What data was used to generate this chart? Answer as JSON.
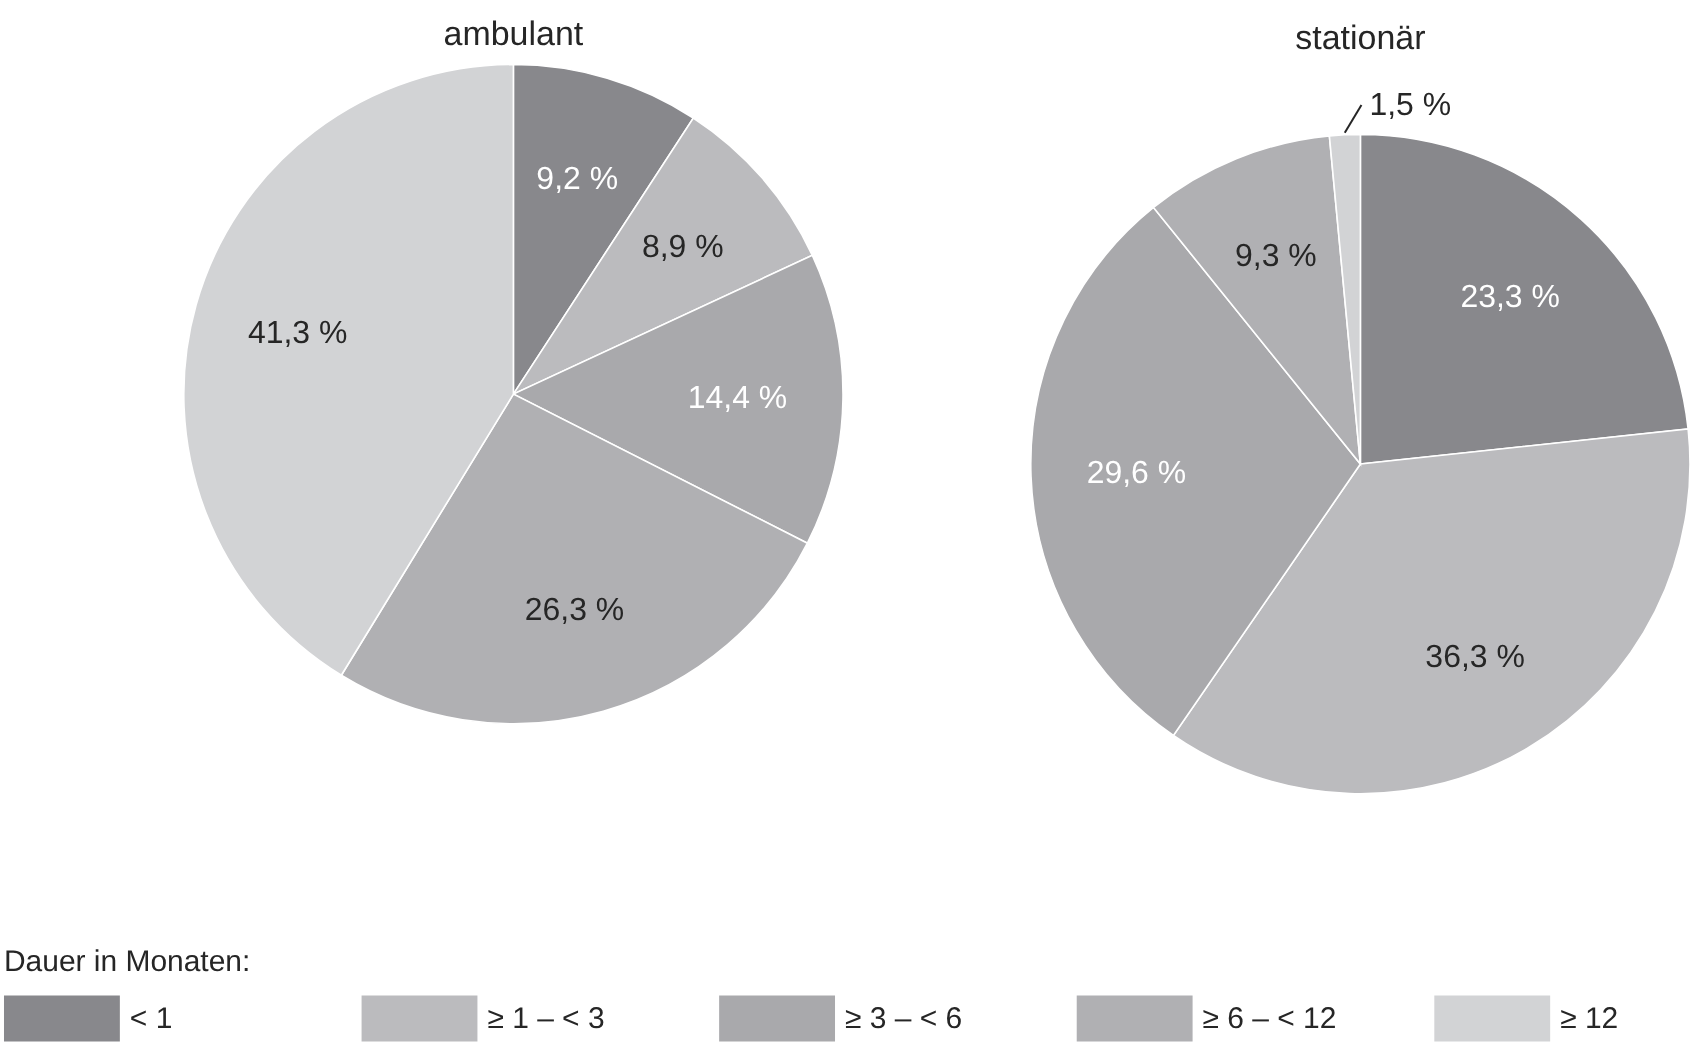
{
  "chart_data": {
    "type": "pie",
    "categories": [
      "< 1",
      "≥ 1 – < 3",
      "≥ 3 – < 6",
      "≥ 6 – < 12",
      "≥ 12"
    ],
    "colors": [
      "#88888c",
      "#bbbbbe",
      "#a9a9ac",
      "#b0b0b3",
      "#d2d3d5"
    ],
    "legend": "bottom",
    "legend_title": "Dauer in Monaten:",
    "series": [
      {
        "name": "ambulant",
        "values": [
          9.2,
          8.9,
          14.4,
          26.3,
          41.3
        ],
        "value_labels": [
          "9,2 %",
          "8,9 %",
          "14,4 %",
          "26,3 %",
          "41,3 %"
        ]
      },
      {
        "name": "stationär",
        "values": [
          23.3,
          36.3,
          29.6,
          9.3,
          1.5
        ],
        "value_labels": [
          "23,3 %",
          "36,3 %",
          "29,6 %",
          "9,3 %",
          "1,5 %"
        ]
      }
    ]
  }
}
